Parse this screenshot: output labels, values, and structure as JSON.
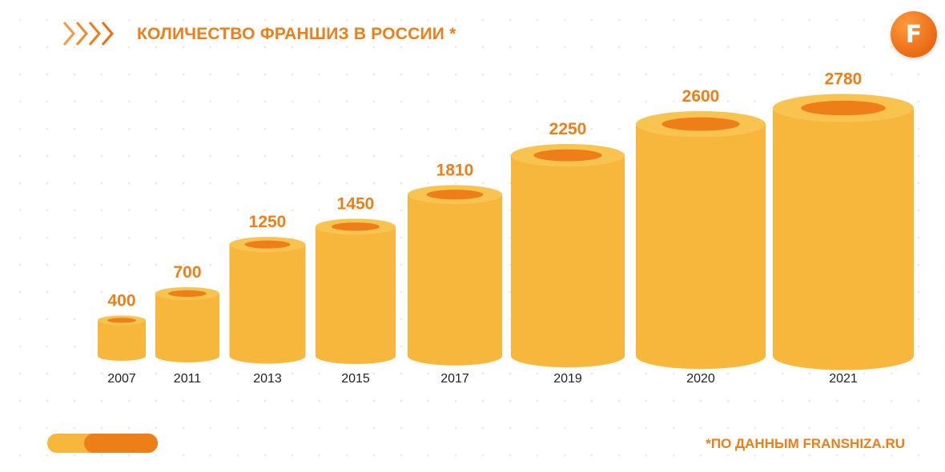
{
  "header": {
    "title": "КОЛИЧЕСТВО ФРАНШИЗ В РОССИИ *",
    "logo_letter": "F"
  },
  "footer": {
    "source": "*ПО ДАННЫМ FRANSHIZA.RU"
  },
  "colors": {
    "accent": "#ee7e17",
    "cylinder_body": "#f6b73c",
    "cylinder_hole": "#ee7e17"
  },
  "icons": [
    "chevrons-right-icon",
    "franshiza-logo-icon"
  ],
  "chart_data": {
    "type": "bar",
    "style": "cylinders",
    "title": "КОЛИЧЕСТВО ФРАНШИЗ В РОССИИ *",
    "categories": [
      "2007",
      "2011",
      "2013",
      "2015",
      "2017",
      "2019",
      "2020",
      "2021"
    ],
    "values": [
      400,
      700,
      1250,
      1450,
      1810,
      2250,
      2600,
      2780
    ],
    "data_labels": [
      "400",
      "700",
      "1250",
      "1450",
      "1810",
      "2250",
      "2600",
      "2780"
    ]
  }
}
